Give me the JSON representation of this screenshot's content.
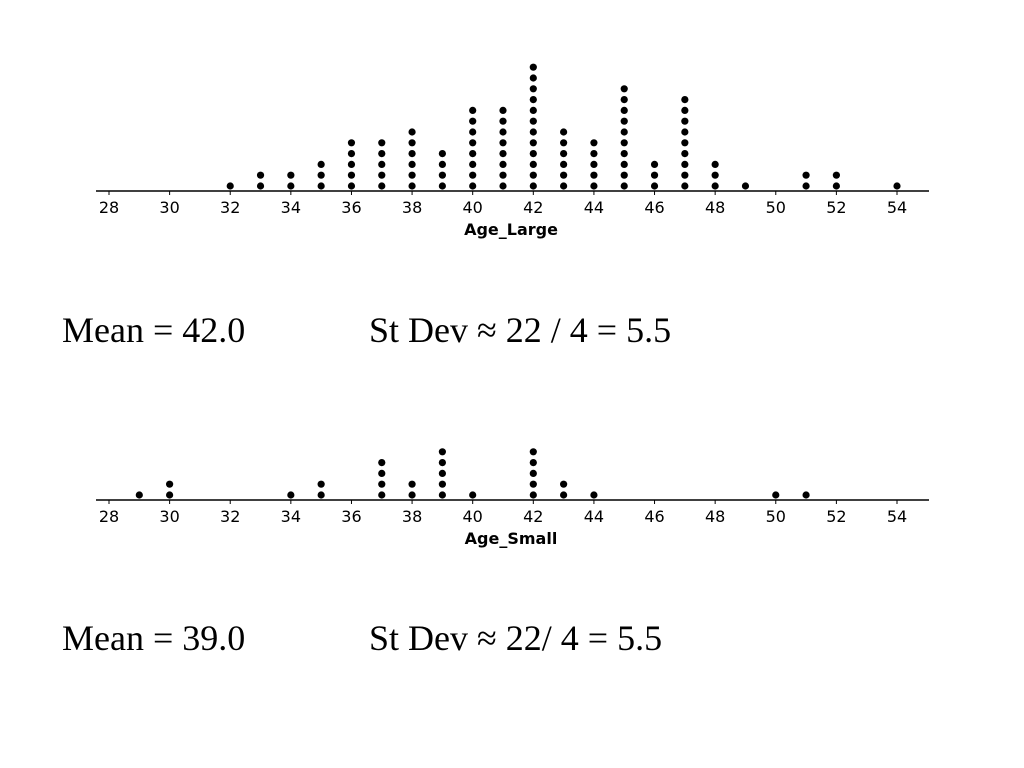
{
  "chart_data": [
    {
      "type": "dot",
      "xlabel": "Age_Large",
      "xlim": [
        28,
        54
      ],
      "ticks": [
        28,
        30,
        32,
        34,
        36,
        38,
        40,
        42,
        44,
        46,
        48,
        50,
        52,
        54
      ],
      "dot_color": "#000000",
      "points": [
        {
          "x": 32,
          "count": 1
        },
        {
          "x": 33,
          "count": 2
        },
        {
          "x": 34,
          "count": 2
        },
        {
          "x": 35,
          "count": 3
        },
        {
          "x": 36,
          "count": 5
        },
        {
          "x": 37,
          "count": 5
        },
        {
          "x": 38,
          "count": 6
        },
        {
          "x": 39,
          "count": 4
        },
        {
          "x": 40,
          "count": 8
        },
        {
          "x": 41,
          "count": 8
        },
        {
          "x": 42,
          "count": 12
        },
        {
          "x": 43,
          "count": 6
        },
        {
          "x": 44,
          "count": 5
        },
        {
          "x": 45,
          "count": 10
        },
        {
          "x": 46,
          "count": 3
        },
        {
          "x": 47,
          "count": 9
        },
        {
          "x": 48,
          "count": 3
        },
        {
          "x": 49,
          "count": 1
        },
        {
          "x": 51,
          "count": 2
        },
        {
          "x": 52,
          "count": 2
        },
        {
          "x": 54,
          "count": 1
        }
      ]
    },
    {
      "type": "dot",
      "xlabel": "Age_Small",
      "xlim": [
        28,
        54
      ],
      "ticks": [
        28,
        30,
        32,
        34,
        36,
        38,
        40,
        42,
        44,
        46,
        48,
        50,
        52,
        54
      ],
      "dot_color": "#000000",
      "points": [
        {
          "x": 29,
          "count": 1
        },
        {
          "x": 30,
          "count": 2
        },
        {
          "x": 34,
          "count": 1
        },
        {
          "x": 35,
          "count": 2
        },
        {
          "x": 37,
          "count": 4
        },
        {
          "x": 38,
          "count": 2
        },
        {
          "x": 39,
          "count": 5
        },
        {
          "x": 40,
          "count": 1
        },
        {
          "x": 42,
          "count": 5
        },
        {
          "x": 43,
          "count": 2
        },
        {
          "x": 44,
          "count": 1
        },
        {
          "x": 50,
          "count": 1
        },
        {
          "x": 51,
          "count": 1
        }
      ]
    }
  ],
  "stats": {
    "large": {
      "mean": "Mean = 42.0",
      "sd": "St Dev ≈ 22 / 4 = 5.5"
    },
    "small": {
      "mean": "Mean = 39.0",
      "sd": "St Dev ≈ 22/ 4 = 5.5"
    }
  }
}
